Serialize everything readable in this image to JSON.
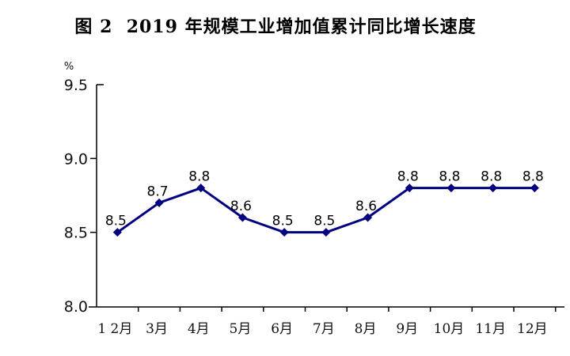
{
  "chart_data": {
    "type": "line",
    "title": "图 2  2019 年规模工业增加值累计同比增长速度",
    "unit_label": "%",
    "categories": [
      "1 2月",
      "3月",
      "4月",
      "5月",
      "6月",
      "7月",
      "8月",
      "9月",
      "10月",
      "11月",
      "12月"
    ],
    "values": [
      8.5,
      8.7,
      8.8,
      8.6,
      8.5,
      8.5,
      8.6,
      8.8,
      8.8,
      8.8,
      8.8
    ],
    "ytick_labels": [
      "9.5",
      "9.0",
      "8.5",
      "8.0"
    ],
    "ylim": [
      8.0,
      9.5
    ],
    "grid": false,
    "legend": "none",
    "line_color": "#000080",
    "axis_color": "#000000",
    "label_color": "#000000"
  }
}
